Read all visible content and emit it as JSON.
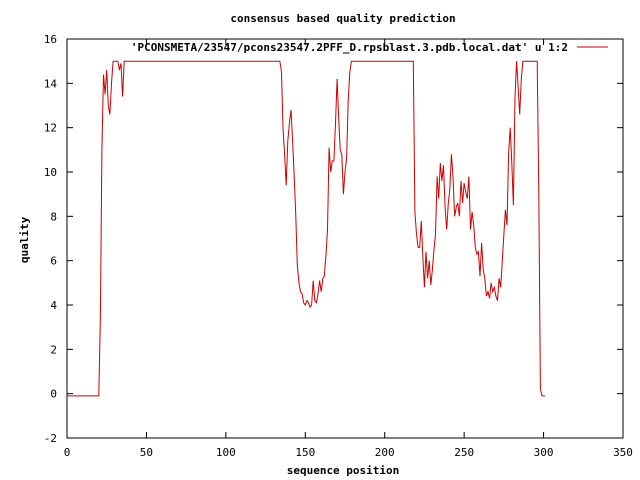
{
  "chart_data": {
    "type": "line",
    "title": "consensus based quality prediction",
    "xlabel": "sequence position",
    "ylabel": "quality",
    "xlim": [
      0,
      350
    ],
    "ylim": [
      -2,
      16
    ],
    "xticks": [
      0,
      50,
      100,
      150,
      200,
      250,
      300,
      350
    ],
    "yticks": [
      -2,
      0,
      2,
      4,
      6,
      8,
      10,
      12,
      14,
      16
    ],
    "grid": false,
    "legend_position": "top-right",
    "series": [
      {
        "name": "'PCONSMETA/23547/pcons23547.2PFF_D.rpsblast.3.pdb.local.dat' u 1:2",
        "color": "#cc0000",
        "points": [
          [
            0,
            -0.1
          ],
          [
            20,
            -0.1
          ],
          [
            21,
            3.5
          ],
          [
            22,
            11
          ],
          [
            23,
            14.4
          ],
          [
            24,
            13.5
          ],
          [
            25,
            14.6
          ],
          [
            26,
            13
          ],
          [
            27,
            12.6
          ],
          [
            28,
            14
          ],
          [
            29,
            15
          ],
          [
            30,
            15
          ],
          [
            31,
            15
          ],
          [
            32,
            15
          ],
          [
            33,
            14.6
          ],
          [
            34,
            14.9
          ],
          [
            35,
            13.4
          ],
          [
            36,
            15
          ],
          [
            37,
            15
          ],
          [
            38,
            15
          ],
          [
            60,
            15
          ],
          [
            100,
            15
          ],
          [
            134,
            15
          ],
          [
            135,
            14.5
          ],
          [
            136,
            12
          ],
          [
            137,
            10.8
          ],
          [
            138,
            9.4
          ],
          [
            139,
            11.4
          ],
          [
            140,
            12.2
          ],
          [
            141,
            12.8
          ],
          [
            142,
            11.4
          ],
          [
            143,
            9.8
          ],
          [
            144,
            8
          ],
          [
            145,
            5.8
          ],
          [
            146,
            5
          ],
          [
            147,
            4.6
          ],
          [
            148,
            4.5
          ],
          [
            149,
            4.1
          ],
          [
            150,
            4
          ],
          [
            151,
            4.2
          ],
          [
            152,
            4.1
          ],
          [
            153,
            3.9
          ],
          [
            154,
            4
          ],
          [
            155,
            5.1
          ],
          [
            156,
            4.2
          ],
          [
            157,
            4.1
          ],
          [
            158,
            4.5
          ],
          [
            159,
            5.1
          ],
          [
            160,
            4.6
          ],
          [
            161,
            5.2
          ],
          [
            162,
            5.3
          ],
          [
            163,
            6.2
          ],
          [
            164,
            7.4
          ],
          [
            165,
            11.1
          ],
          [
            166,
            10
          ],
          [
            167,
            10.5
          ],
          [
            168,
            10.5
          ],
          [
            169,
            12.2
          ],
          [
            170,
            14.2
          ],
          [
            171,
            12.5
          ],
          [
            172,
            11
          ],
          [
            173,
            10.8
          ],
          [
            174,
            9
          ],
          [
            175,
            10
          ],
          [
            176,
            10.6
          ],
          [
            177,
            13.2
          ],
          [
            178,
            14.5
          ],
          [
            179,
            15
          ],
          [
            180,
            15
          ],
          [
            200,
            15
          ],
          [
            218,
            15
          ],
          [
            219,
            8.2
          ],
          [
            220,
            7.2
          ],
          [
            221,
            6.6
          ],
          [
            222,
            6.6
          ],
          [
            223,
            7.8
          ],
          [
            224,
            6.2
          ],
          [
            225,
            4.8
          ],
          [
            226,
            6.4
          ],
          [
            227,
            5.2
          ],
          [
            228,
            6
          ],
          [
            229,
            4.9
          ],
          [
            230,
            5.6
          ],
          [
            231,
            6.5
          ],
          [
            232,
            7.2
          ],
          [
            233,
            9.8
          ],
          [
            234,
            8.8
          ],
          [
            235,
            10.4
          ],
          [
            236,
            9.6
          ],
          [
            237,
            10.3
          ],
          [
            238,
            8.4
          ],
          [
            239,
            7.4
          ],
          [
            240,
            8.6
          ],
          [
            241,
            9.2
          ],
          [
            242,
            10.8
          ],
          [
            243,
            9.8
          ],
          [
            244,
            8
          ],
          [
            245,
            8.4
          ],
          [
            246,
            8.6
          ],
          [
            247,
            8
          ],
          [
            248,
            9.6
          ],
          [
            249,
            8.6
          ],
          [
            250,
            9.5
          ],
          [
            251,
            9.1
          ],
          [
            252,
            8.8
          ],
          [
            253,
            9.8
          ],
          [
            254,
            7.4
          ],
          [
            255,
            8.2
          ],
          [
            256,
            7.6
          ],
          [
            257,
            6.6
          ],
          [
            258,
            6.3
          ],
          [
            259,
            6.4
          ],
          [
            260,
            5.3
          ],
          [
            261,
            6.8
          ],
          [
            262,
            5.6
          ],
          [
            263,
            5.2
          ],
          [
            264,
            4.4
          ],
          [
            265,
            4.6
          ],
          [
            266,
            4.3
          ],
          [
            267,
            5
          ],
          [
            268,
            4.6
          ],
          [
            269,
            4.8
          ],
          [
            270,
            4.4
          ],
          [
            271,
            4.2
          ],
          [
            272,
            5.2
          ],
          [
            273,
            4.8
          ],
          [
            274,
            6
          ],
          [
            275,
            7.2
          ],
          [
            276,
            8.3
          ],
          [
            277,
            7.6
          ],
          [
            278,
            10.8
          ],
          [
            279,
            12
          ],
          [
            280,
            10.4
          ],
          [
            281,
            8.5
          ],
          [
            282,
            13.4
          ],
          [
            283,
            15
          ],
          [
            284,
            13.8
          ],
          [
            285,
            12.6
          ],
          [
            286,
            14.2
          ],
          [
            287,
            15
          ],
          [
            288,
            15
          ],
          [
            296,
            15
          ],
          [
            297,
            9
          ],
          [
            298,
            0.2
          ],
          [
            299,
            -0.1
          ],
          [
            301,
            -0.1
          ]
        ]
      }
    ]
  }
}
